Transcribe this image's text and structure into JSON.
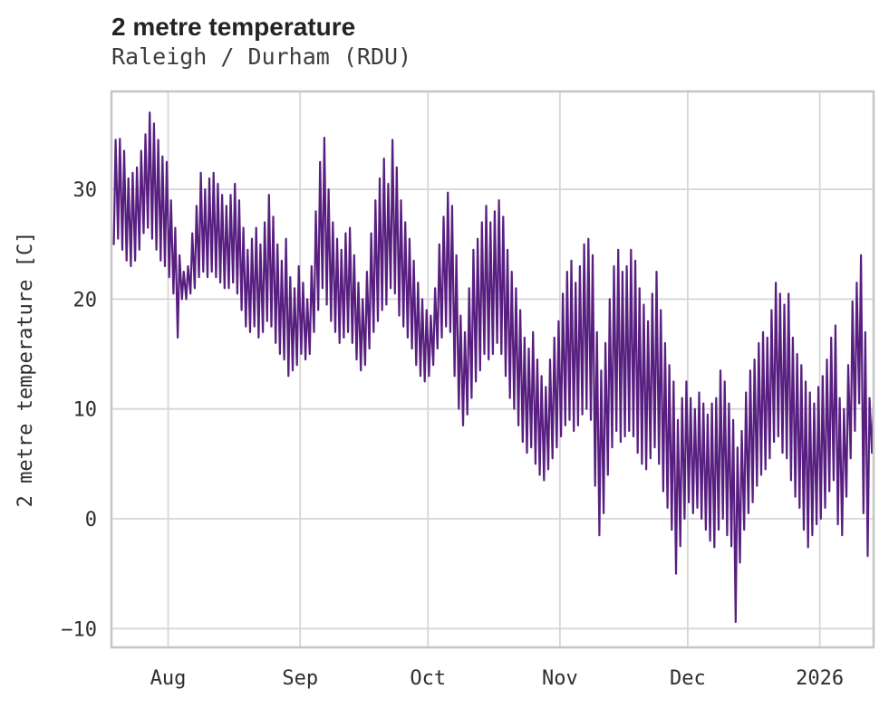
{
  "header": {
    "title": "2 metre temperature",
    "subtitle": "Raleigh / Durham (RDU)"
  },
  "chart_data": {
    "type": "line",
    "title": "2 metre temperature",
    "subtitle": "Raleigh / Durham (RDU)",
    "xlabel": "",
    "ylabel": "2 metre temperature [C]",
    "x_range": [
      "2025-07-19",
      "2026-01-13"
    ],
    "ylim": [
      -11.8,
      38.9
    ],
    "grid": true,
    "legend": "none",
    "line_color": "#581f80",
    "x_tick_labels": [
      "Aug",
      "Sep",
      "Oct",
      "Nov",
      "Dec",
      "2026"
    ],
    "x_tick_day_indices": [
      13,
      44,
      74,
      105,
      135,
      166
    ],
    "y_ticks": [
      30,
      20,
      10,
      0,
      -10
    ],
    "y_tick_labels": [
      "30",
      "20",
      "10",
      "0",
      "−10"
    ],
    "sampling": "daily minimum and maximum of sub-daily temperature trace, one entry per day starting 2025-07-19",
    "series": [
      {
        "name": "2 metre temperature [C]",
        "daily_max": [
          34.5,
          34.6,
          33.5,
          31,
          31.5,
          32,
          33.5,
          35,
          37,
          36,
          34.5,
          33,
          32.5,
          29,
          26.5,
          24,
          22.5,
          23,
          26,
          28.5,
          31.5,
          30,
          31,
          31.5,
          30.5,
          29.5,
          28.5,
          29.5,
          30.5,
          29,
          26.5,
          24.5,
          25.5,
          26.5,
          25,
          27,
          29.5,
          27.5,
          25,
          23.5,
          25.5,
          22,
          21,
          23,
          21.5,
          20,
          23,
          28,
          32.5,
          34.7,
          30,
          27,
          25.5,
          24.5,
          26,
          26.5,
          24,
          21.5,
          20,
          22.5,
          26,
          29,
          31,
          32.8,
          30.5,
          34.5,
          32,
          29,
          27,
          25.5,
          23.5,
          21.5,
          20,
          19,
          18.5,
          21,
          25,
          27.5,
          29.7,
          28.5,
          24,
          18.5,
          17,
          21,
          24.5,
          25.5,
          27,
          28.5,
          27,
          28,
          29,
          27.5,
          24.5,
          22.5,
          21,
          19,
          16.5,
          15.5,
          17,
          14.5,
          13,
          12,
          14.5,
          16.5,
          18,
          20.5,
          22.5,
          23.5,
          21.5,
          23,
          25,
          25.5,
          24,
          17,
          13.5,
          16,
          20,
          23,
          24.5,
          22.5,
          23,
          24.5,
          23.5,
          21,
          19.5,
          18,
          20.5,
          22.5,
          19,
          16,
          14,
          12.5,
          9,
          11,
          12.5,
          11,
          10,
          11.5,
          10.5,
          9.5,
          10.5,
          11,
          13.5,
          12.5,
          10.5,
          9,
          6.5,
          8,
          11.5,
          13.5,
          14.5,
          16,
          17,
          16.5,
          19,
          21.5,
          20.5,
          19.5,
          20.5,
          16.5,
          15,
          14,
          12.5,
          11.5,
          10.5,
          12,
          13,
          14.5,
          16.5,
          17.6,
          11,
          10,
          14,
          19.8,
          21.5,
          24,
          17,
          11,
          11
        ],
        "daily_min": [
          25,
          25.5,
          24.5,
          23.5,
          23,
          23.5,
          24.5,
          26,
          26.5,
          25.5,
          24.5,
          23.5,
          23,
          22,
          20.5,
          16.5,
          20,
          20,
          20.5,
          21,
          22,
          22.5,
          22,
          22.5,
          22,
          21.5,
          21,
          21,
          21.5,
          20.5,
          19,
          17.5,
          17,
          17.5,
          16.5,
          17,
          18,
          17.5,
          16,
          15,
          14.5,
          13,
          13.5,
          14,
          15,
          14.5,
          15,
          17,
          19,
          21,
          19.5,
          18,
          17,
          16,
          16.5,
          17,
          16,
          14.5,
          13.5,
          14,
          15.5,
          17,
          18,
          19,
          19.5,
          21,
          20.5,
          18.5,
          17.5,
          16.5,
          15.5,
          14,
          13,
          12.5,
          13,
          14,
          15.5,
          16.5,
          17.5,
          17,
          13,
          10,
          8.5,
          9.5,
          11,
          12.5,
          13.5,
          15,
          14.5,
          15,
          16,
          15,
          13,
          11,
          10,
          8.5,
          7,
          6,
          6.5,
          5,
          4,
          3.5,
          4.5,
          5.5,
          6.5,
          7.5,
          8.5,
          9,
          8,
          8.5,
          9.5,
          10,
          9,
          3,
          -1.5,
          0.5,
          4,
          6.5,
          8,
          7,
          7.5,
          8,
          7.5,
          6,
          5,
          4.5,
          5.5,
          6.5,
          5,
          2.5,
          1,
          -1,
          -5,
          -2.5,
          0,
          1.5,
          0.5,
          1,
          0,
          -1,
          -2,
          -2.6,
          -1,
          0,
          -1.5,
          -2.5,
          -9.4,
          -4,
          -1,
          0.5,
          1.5,
          3,
          4,
          4.5,
          5.5,
          7,
          7.5,
          6,
          5.5,
          3.5,
          2,
          1,
          -1,
          -2.6,
          -1.5,
          -0.5,
          0,
          1,
          2.5,
          3.5,
          -0.5,
          -1.5,
          2,
          5.5,
          8,
          10.5,
          0.5,
          -3.4,
          6
        ]
      }
    ]
  }
}
